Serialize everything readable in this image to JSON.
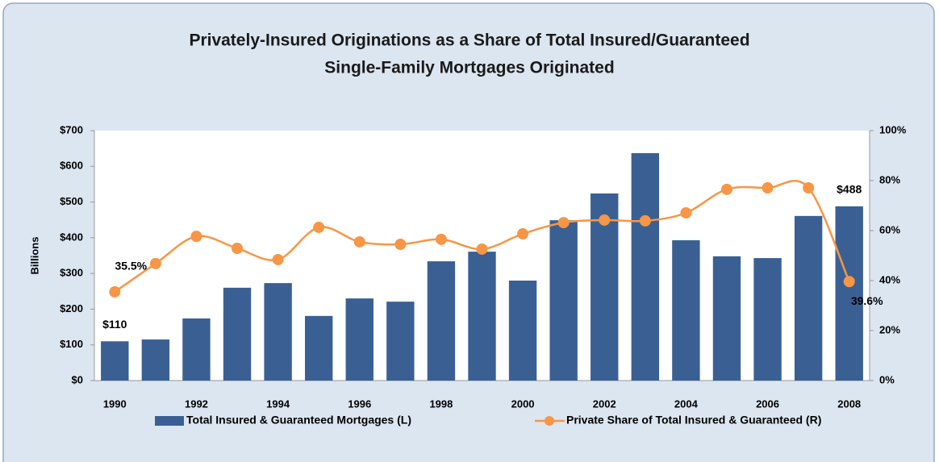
{
  "chart_data": {
    "type": "bar",
    "title": [
      "Privately-Insured Originations  as a Share of Total Insured/Guaranteed",
      "Single-Family Mortgages Originated"
    ],
    "y_label": "Billions",
    "categories": [
      "1990",
      null,
      "1992",
      null,
      "1994",
      null,
      "1996",
      null,
      "1998",
      null,
      "2000",
      null,
      "2002",
      null,
      "2004",
      null,
      "2006",
      null,
      "2008"
    ],
    "series": [
      {
        "name": "Total Insured  & Guaranteed Mortgages (L)",
        "type": "bar",
        "color": "#3a6093",
        "values": [
          110,
          115,
          174,
          260,
          273,
          181,
          230,
          221,
          334,
          361,
          280,
          449,
          524,
          637,
          393,
          348,
          343,
          461,
          488
        ],
        "value_labels": [
          "$110",
          null,
          null,
          null,
          null,
          null,
          null,
          null,
          null,
          null,
          null,
          null,
          null,
          null,
          null,
          null,
          null,
          null,
          "$488"
        ]
      },
      {
        "name": "Private Share of Total Insured & Guaranteed (R)",
        "type": "line",
        "axis": "y2",
        "color": "#f79646",
        "values": [
          35.5,
          46.8,
          57.7,
          52.9,
          48.4,
          61.3,
          55.5,
          54.5,
          56.5,
          52.6,
          58.7,
          63.2,
          64.2,
          63.9,
          67.1,
          76.5,
          77.1,
          77.1,
          39.6
        ],
        "value_labels": [
          "35.5%",
          null,
          null,
          null,
          null,
          null,
          null,
          null,
          null,
          null,
          null,
          null,
          null,
          null,
          null,
          null,
          null,
          null,
          "39.6%"
        ]
      }
    ],
    "ylim": [
      0,
      700
    ],
    "yticks": [
      {
        "value": 0,
        "label": "$0"
      },
      {
        "value": 100,
        "label": "$100"
      },
      {
        "value": 200,
        "label": "$200"
      },
      {
        "value": 300,
        "label": "$300"
      },
      {
        "value": 400,
        "label": "$400"
      },
      {
        "value": 500,
        "label": "$500"
      },
      {
        "value": 600,
        "label": "$600"
      },
      {
        "value": 700,
        "label": "$700"
      }
    ],
    "y2lim": [
      0,
      100
    ],
    "y2ticks": [
      {
        "value": 0,
        "label": "0%"
      },
      {
        "value": 20,
        "label": "20%"
      },
      {
        "value": 40,
        "label": "40%"
      },
      {
        "value": 60,
        "label": "60%"
      },
      {
        "value": 80,
        "label": "80%"
      },
      {
        "value": 100,
        "label": "100%"
      }
    ],
    "grid": false,
    "legend": "bottom"
  }
}
